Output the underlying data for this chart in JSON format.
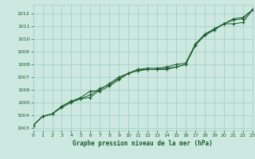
{
  "xlabel": "Graphe pression niveau de la mer (hPa)",
  "xlim": [
    0,
    23
  ],
  "ylim": [
    1002.8,
    1012.7
  ],
  "yticks": [
    1003,
    1004,
    1005,
    1006,
    1007,
    1008,
    1009,
    1010,
    1011,
    1012
  ],
  "xticks": [
    0,
    1,
    2,
    3,
    4,
    5,
    6,
    7,
    8,
    9,
    10,
    11,
    12,
    13,
    14,
    15,
    16,
    17,
    18,
    19,
    20,
    21,
    22,
    23
  ],
  "bg_color": "#cce8e0",
  "grid_color": "#9ecdc4",
  "line_color": "#1a5c2a",
  "line1_y": [
    1003.2,
    1003.9,
    1004.1,
    1004.6,
    1005.0,
    1005.3,
    1005.4,
    1006.0,
    1006.5,
    1007.0,
    1007.3,
    1007.5,
    1007.6,
    1007.6,
    1007.6,
    1007.8,
    1008.0,
    1009.5,
    1010.3,
    1010.8,
    1011.2,
    1011.2,
    1011.3,
    1012.3
  ],
  "line2_y": [
    1003.2,
    1003.9,
    1004.1,
    1004.7,
    1005.1,
    1005.3,
    1005.6,
    1006.1,
    1006.4,
    1006.9,
    1007.3,
    1007.6,
    1007.6,
    1007.6,
    1007.7,
    1007.8,
    1008.0,
    1009.5,
    1010.3,
    1010.7,
    1011.2,
    1011.5,
    1011.6,
    1012.3
  ],
  "line3_y": [
    1003.2,
    1003.9,
    1004.1,
    1004.7,
    1005.1,
    1005.4,
    1005.9,
    1005.9,
    1006.3,
    1006.8,
    1007.3,
    1007.6,
    1007.7,
    1007.7,
    1007.8,
    1008.0,
    1008.1,
    1009.6,
    1010.4,
    1010.8,
    1011.2,
    1011.6,
    1011.7,
    1012.3
  ]
}
